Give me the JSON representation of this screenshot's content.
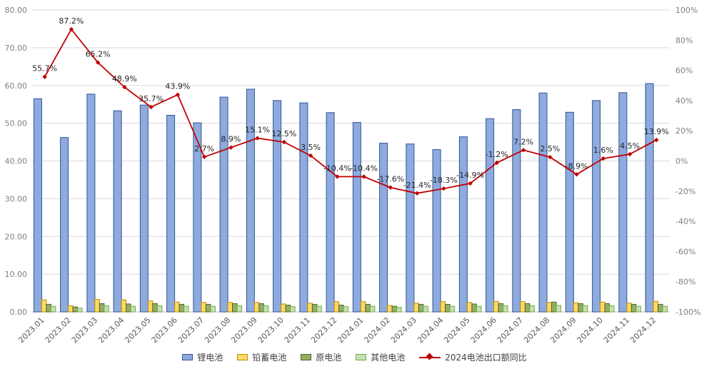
{
  "chart_data": {
    "type": "bar",
    "title": "",
    "grid": true,
    "legend_position": "bottom",
    "categories": [
      "2023.01",
      "2023.02",
      "2023.03",
      "2023.04",
      "2023.05",
      "2023.06",
      "2023.07",
      "2023.08",
      "2023.09",
      "2023.10",
      "2023.11",
      "2023.12",
      "2024.01",
      "2024.02",
      "2024.03",
      "2024.04",
      "2024.05",
      "2024.06",
      "2024.07",
      "2024.08",
      "2024.09",
      "2024.10",
      "2024.11",
      "2024.12"
    ],
    "left_axis": {
      "min": 0,
      "max": 80,
      "ticks": [
        "0.00",
        "10.00",
        "20.00",
        "30.00",
        "40.00",
        "50.00",
        "60.00",
        "70.00",
        "80.00"
      ]
    },
    "right_axis": {
      "min": -100,
      "max": 100,
      "ticks": [
        "-100%",
        "-80%",
        "-60%",
        "-40%",
        "-20%",
        "0%",
        "20%",
        "40%",
        "60%",
        "80%",
        "100%"
      ]
    },
    "series": [
      {
        "name": "锂电池",
        "type": "bar",
        "fill": "#8FAADC",
        "stroke": "#2E5596",
        "values": [
          56.5,
          46.2,
          57.7,
          53.3,
          54.8,
          52.1,
          50.1,
          56.9,
          59.0,
          56.0,
          55.4,
          52.8,
          50.2,
          44.7,
          44.5,
          43.0,
          46.4,
          51.2,
          53.6,
          58.0,
          52.9,
          56.0,
          58.1,
          60.5
        ]
      },
      {
        "name": "铅蓄电池",
        "type": "bar",
        "fill": "#FFD966",
        "stroke": "#BF8F00",
        "values": [
          3.2,
          1.6,
          3.3,
          3.2,
          2.9,
          2.6,
          2.5,
          2.5,
          2.5,
          2.1,
          2.3,
          2.7,
          2.7,
          1.7,
          2.3,
          2.7,
          2.5,
          2.8,
          2.7,
          2.5,
          2.4,
          2.6,
          2.3,
          2.8
        ]
      },
      {
        "name": "原电池",
        "type": "bar",
        "fill": "#94AF63",
        "stroke": "#4F6228",
        "values": [
          2.0,
          1.3,
          2.2,
          2.1,
          2.2,
          2.0,
          2.0,
          2.2,
          2.2,
          1.8,
          2.0,
          1.8,
          2.0,
          1.5,
          2.0,
          2.0,
          2.1,
          2.2,
          2.2,
          2.6,
          2.2,
          2.2,
          2.0,
          2.0
        ]
      },
      {
        "name": "其他电池",
        "type": "bar",
        "fill": "#C6E0B4",
        "stroke": "#70AD47",
        "values": [
          1.5,
          1.0,
          1.6,
          1.5,
          1.6,
          1.5,
          1.5,
          1.6,
          1.6,
          1.4,
          1.5,
          1.4,
          1.5,
          1.2,
          1.5,
          1.5,
          1.5,
          1.6,
          1.6,
          1.7,
          1.6,
          1.6,
          1.5,
          1.5
        ]
      }
    ],
    "line_series": {
      "name": "2024电池出口额同比",
      "color": "#C00000",
      "axis": "right",
      "values": [
        55.7,
        87.2,
        65.2,
        48.9,
        35.7,
        43.9,
        2.7,
        8.9,
        15.1,
        12.5,
        3.5,
        -10.4,
        -10.4,
        -17.6,
        -21.4,
        -18.3,
        -14.9,
        -1.2,
        7.2,
        2.5,
        -8.9,
        1.6,
        4.5,
        13.9
      ],
      "labels": [
        "55.7%",
        "87.2%",
        "65.2%",
        "48.9%",
        "35.7%",
        "43.9%",
        "2.7%",
        "8.9%",
        "15.1%",
        "12.5%",
        "3.5%",
        "-10.4%",
        "-10.4%",
        "-17.6%",
        "-21.4%",
        "-18.3%",
        "-14.9%",
        "-1.2%",
        "7.2%",
        "2.5%",
        "-8.9%",
        "1.6%",
        "4.5%",
        "13.9%"
      ]
    },
    "style": {
      "gridline_color": "#D9D9D9",
      "axis_line_color": "#BFBFBF",
      "tick_label_color": "#808080",
      "x_label_color": "#595959",
      "data_label_color": "#262626"
    }
  }
}
